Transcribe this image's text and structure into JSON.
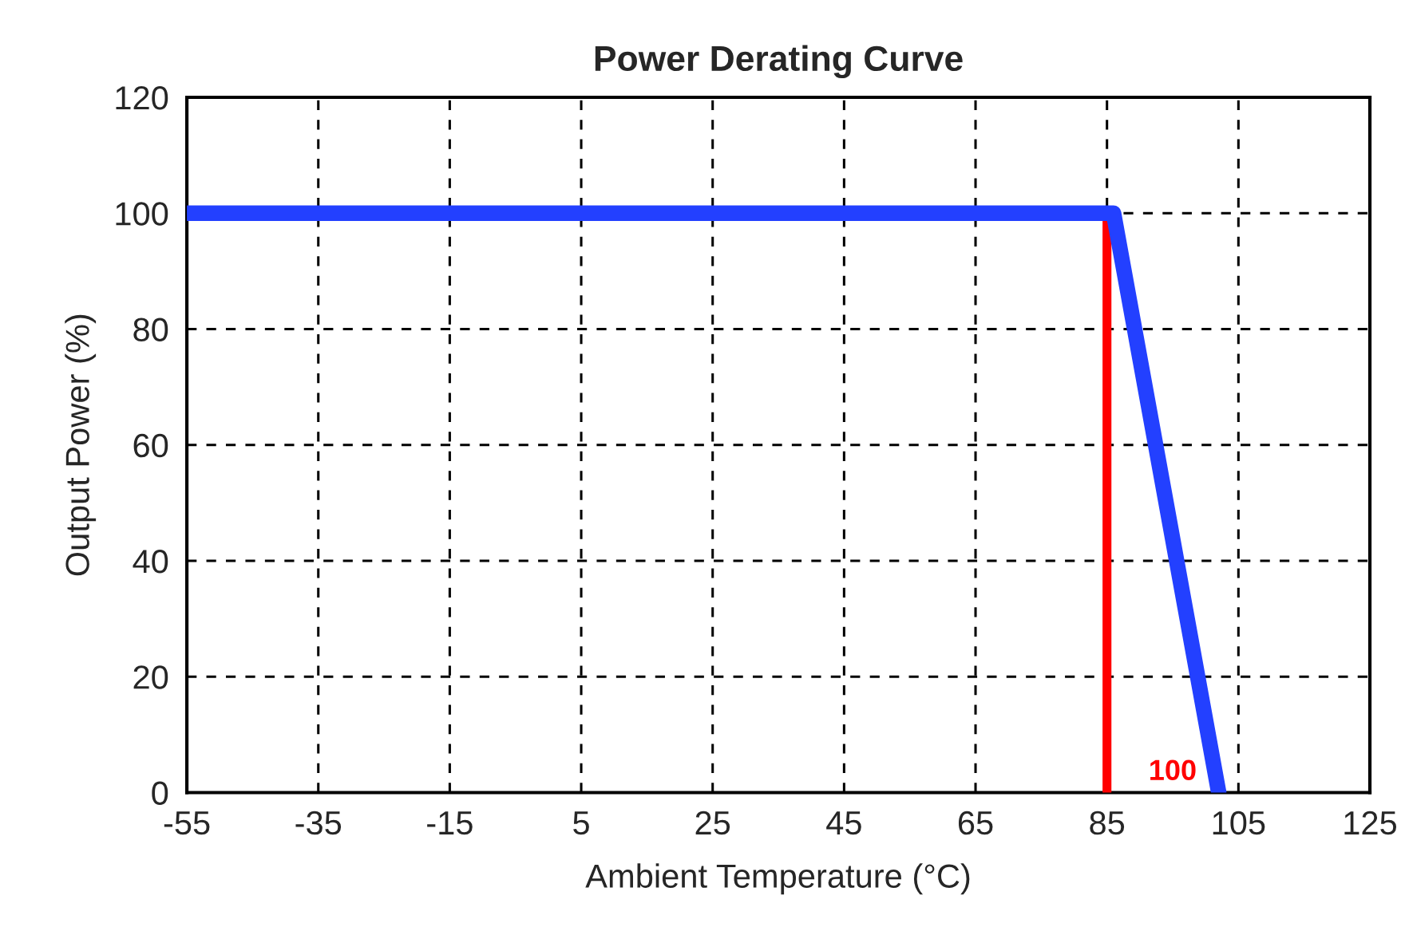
{
  "chart_data": {
    "type": "line",
    "title": "Power Derating Curve",
    "xlabel": "Ambient Temperature (°C)",
    "ylabel": "Output Power (%)",
    "series": [
      {
        "color": "#2340ff",
        "x": [
          -55,
          86,
          102
        ],
        "values": [
          100,
          100,
          0
        ]
      },
      {
        "color": "#ff0000",
        "x": [
          85,
          85
        ],
        "values": [
          0,
          100
        ]
      }
    ],
    "annotations": [
      {
        "text": "100",
        "x": 100,
        "y": 0
      }
    ],
    "xlim": [
      -55,
      125
    ],
    "xticks": [
      -55,
      -35,
      -15,
      5,
      25,
      45,
      65,
      85,
      105,
      125
    ],
    "ylim": [
      0,
      120
    ],
    "yticks": [
      0,
      20,
      40,
      60,
      80,
      100,
      120
    ],
    "grid": true,
    "line_style": "solid",
    "marker": "none",
    "legend": false
  }
}
